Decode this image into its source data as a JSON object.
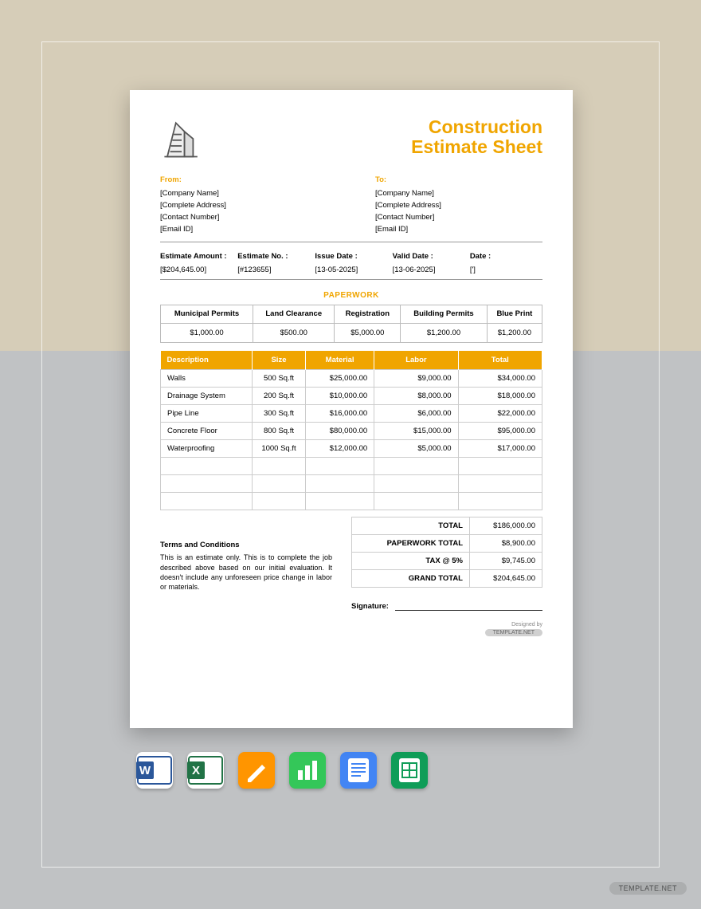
{
  "colors": {
    "accent": "#f0a500",
    "bg_top": "#d6cdb8",
    "bg_bottom": "#c0c2c4",
    "frame_border": "rgba(255,255,255,0.7)",
    "sheet_bg": "#ffffff",
    "border": "#cccccc",
    "text": "#000000"
  },
  "title": {
    "line1": "Construction",
    "line2": "Estimate Sheet"
  },
  "from": {
    "heading": "From:",
    "lines": [
      "[Company Name]",
      "[Complete Address]",
      "[Contact Number]",
      "[Email ID]"
    ]
  },
  "to": {
    "heading": "To:",
    "lines": [
      "[Company Name]",
      "[Complete Address]",
      "[Contact Number]",
      "[Email ID]"
    ]
  },
  "meta": {
    "labels": [
      "Estimate Amount :",
      "Estimate No. :",
      "Issue Date :",
      "Valid Date :",
      "Date :"
    ],
    "values": [
      "[$204,645.00]",
      "[#123655]",
      "[13-05-2025]",
      "[13-06-2025]",
      "[']"
    ]
  },
  "paperwork": {
    "section_title": "PAPERWORK",
    "headers": [
      "Municipal Permits",
      "Land Clearance",
      "Registration",
      "Building Permits",
      "Blue Print"
    ],
    "values": [
      "$1,000.00",
      "$500.00",
      "$5,000.00",
      "$1,200.00",
      "$1,200.00"
    ]
  },
  "items": {
    "headers": [
      "Description",
      "Size",
      "Material",
      "Labor",
      "Total"
    ],
    "col_widths": [
      "24%",
      "14%",
      "18%",
      "22%",
      "22%"
    ],
    "rows": [
      [
        "Walls",
        "500 Sq.ft",
        "$25,000.00",
        "$9,000.00",
        "$34,000.00"
      ],
      [
        "Drainage System",
        "200 Sq.ft",
        "$10,000.00",
        "$8,000.00",
        "$18,000.00"
      ],
      [
        "Pipe Line",
        "300 Sq.ft",
        "$16,000.00",
        "$6,000.00",
        "$22,000.00"
      ],
      [
        "Concrete Floor",
        "800 Sq.ft",
        "$80,000.00",
        "$15,000.00",
        "$95,000.00"
      ],
      [
        "Waterproofing",
        "1000 Sq.ft",
        "$12,000.00",
        "$5,000.00",
        "$17,000.00"
      ]
    ],
    "blank_rows": 3
  },
  "totals": {
    "rows": [
      {
        "label": "TOTAL",
        "value": "$186,000.00"
      },
      {
        "label": "PAPERWORK TOTAL",
        "value": "$8,900.00"
      },
      {
        "label": "TAX @ 5%",
        "value": "$9,745.00"
      },
      {
        "label": "GRAND TOTAL",
        "value": "$204,645.00"
      }
    ]
  },
  "terms": {
    "title": "Terms and Conditions",
    "body": "This is an estimate only. This is to complete the job described above based on our initial evaluation. It doesn't include any unforeseen price change in labor or materials."
  },
  "signature_label": "Signature:",
  "designed_by": {
    "label": "Designed by",
    "brand": "TEMPLATE.NET"
  },
  "app_icons": [
    {
      "name": "word-icon",
      "bg": "#ffffff",
      "border": "#2b579a",
      "letter": "W",
      "letter_color": "#2b579a"
    },
    {
      "name": "excel-icon",
      "bg": "#ffffff",
      "border": "#217346",
      "letter": "X",
      "letter_color": "#217346"
    },
    {
      "name": "pages-icon",
      "bg": "#ff9500",
      "border": "#ff9500",
      "glyph": "pen",
      "glyph_color": "#ffffff"
    },
    {
      "name": "numbers-icon",
      "bg": "#34c759",
      "border": "#34c759",
      "glyph": "bars",
      "glyph_color": "#ffffff"
    },
    {
      "name": "docs-icon",
      "bg": "#4285f4",
      "border": "#4285f4",
      "glyph": "lines",
      "glyph_color": "#ffffff"
    },
    {
      "name": "sheets-icon",
      "bg": "#0f9d58",
      "border": "#0f9d58",
      "glyph": "grid",
      "glyph_color": "#ffffff"
    }
  ],
  "page_badge": "TEMPLATE.NET"
}
